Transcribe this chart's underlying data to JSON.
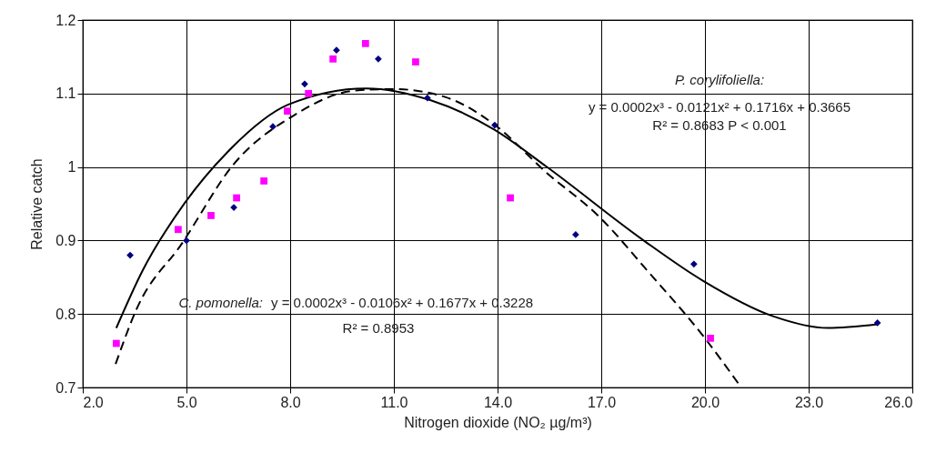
{
  "chart_data": {
    "type": "scatter",
    "xlabel": "Nitrogen dioxide (NO₂ µg/m³)",
    "ylabel": "Relative catch",
    "xlim": [
      2,
      26
    ],
    "xticks": [
      {
        "value": 2,
        "label": "2.0"
      },
      {
        "value": 5,
        "label": "5.0"
      },
      {
        "value": 8,
        "label": "8.0"
      },
      {
        "value": 11,
        "label": "11.0"
      },
      {
        "value": 14,
        "label": "14.0"
      },
      {
        "value": 17,
        "label": "17.0"
      },
      {
        "value": 20,
        "label": "20.0"
      },
      {
        "value": 23,
        "label": "23.0"
      },
      {
        "value": 26,
        "label": "26.0"
      }
    ],
    "ylim": [
      0.7,
      1.2
    ],
    "yticks": [
      0.7,
      0.8,
      0.9,
      1,
      1.1,
      1.2
    ],
    "grid": true,
    "series": [
      {
        "color": "#000080",
        "marker": "diamond",
        "x": [
          3.37,
          5.0,
          6.37,
          7.5,
          8.42,
          9.34,
          10.55,
          11.97,
          13.92,
          16.26,
          19.68,
          24.99
        ],
        "values": [
          0.88,
          0.9,
          0.945,
          1.055,
          1.113,
          1.159,
          1.147,
          1.094,
          1.057,
          0.908,
          0.868,
          0.788
        ]
      },
      {
        "color": "#ff00ff",
        "marker": "square",
        "x": [
          2.97,
          4.76,
          5.71,
          6.45,
          7.24,
          7.92,
          8.53,
          9.24,
          10.18,
          11.63,
          14.37,
          20.16
        ],
        "values": [
          0.76,
          0.915,
          0.934,
          0.958,
          0.981,
          1.076,
          1.1,
          1.147,
          1.168,
          1.143,
          0.958,
          0.767
        ]
      },
      {
        "type": "line",
        "color": "#000000",
        "line_style": "solid",
        "x": [
          2.97,
          3.73,
          4.95,
          6.18,
          7.95,
          10.2,
          12.05,
          13.9,
          15.4,
          18.2,
          19.95,
          21.97,
          23.55,
          25.0
        ],
        "values": [
          0.781,
          0.859,
          0.951,
          1.02,
          1.085,
          1.107,
          1.091,
          1.051,
          1.001,
          0.901,
          0.845,
          0.797,
          0.781,
          0.786
        ]
      },
      {
        "type": "line",
        "color": "#000000",
        "line_style": "dashed",
        "x": [
          2.95,
          3.55,
          4.87,
          6.37,
          8.1,
          9.87,
          11.0,
          12.5,
          13.9,
          15.4,
          16.97,
          18.37,
          19.95,
          21.05
        ],
        "values": [
          0.732,
          0.806,
          0.896,
          1.004,
          1.07,
          1.104,
          1.106,
          1.095,
          1.058,
          0.993,
          0.931,
          0.857,
          0.77,
          0.7
        ]
      }
    ],
    "annotations": [
      "P. corylifoliella:",
      "y = 0.0002x³ - 0.0121x² + 0.1716x + 0.3665",
      "R² = 0.8683  P < 0.001",
      "C. pomonella:",
      "y = 0.0002x³ - 0.0106x² + 0.1677x + 0.3228",
      "R² = 0.8953"
    ]
  }
}
